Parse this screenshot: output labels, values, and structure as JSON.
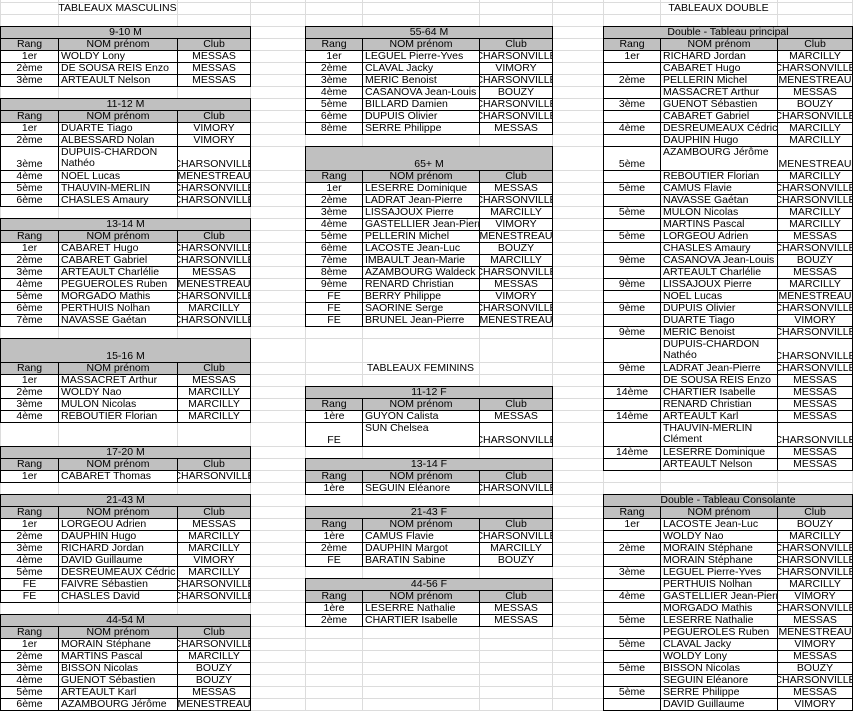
{
  "headers": {
    "rang": "Rang",
    "nom": "NOM prénom",
    "club": "Club"
  },
  "masculins": {
    "heading": "TABLEAUX MASCULINS",
    "tables": [
      {
        "title": "9-10 M",
        "rows": [
          [
            "1er",
            "WOLDY Lony",
            "MESSAS"
          ],
          [
            "2ème",
            "DE SOUSA REIS Enzo",
            "MESSAS"
          ],
          [
            "3ème",
            "ARTEAULT Nelson",
            "MESSAS"
          ]
        ]
      },
      {
        "title": "11-12 M",
        "rows": [
          [
            "1er",
            "DUARTE Tiago",
            "VIMORY"
          ],
          [
            "2ème",
            "ALBESSARD Nolan",
            "VIMORY"
          ],
          [
            "3ème",
            "DUPUIS-CHARDON Nathéo",
            "CHARSONVILLE"
          ],
          [
            "4ème",
            "NOEL Lucas",
            "MENESTREAU"
          ],
          [
            "5ème",
            "THAUVIN-MERLIN",
            "CHARSONVILLE"
          ],
          [
            "6ème",
            "CHASLES Amaury",
            "CHARSONVILLE"
          ]
        ]
      },
      {
        "title": "13-14 M",
        "rows": [
          [
            "1er",
            "CABARET Hugo",
            "CHARSONVILLE"
          ],
          [
            "2ème",
            "CABARET Gabriel",
            "CHARSONVILLE"
          ],
          [
            "3ème",
            "ARTEAULT Charlélie",
            "MESSAS"
          ],
          [
            "4ème",
            "PEGUEROLES Ruben",
            "MENESTREAU"
          ],
          [
            "5ème",
            "MORGADO Mathis",
            "CHARSONVILLE"
          ],
          [
            "6ème",
            "PERTHUIS Nolhan",
            "MARCILLY"
          ],
          [
            "7ème",
            "NAVASSE Gaétan",
            "CHARSONVILLE"
          ]
        ]
      },
      {
        "title": "15-16 M",
        "rows": [
          [
            "1er",
            "MASSACRET Arthur",
            "MESSAS"
          ],
          [
            "2ème",
            "WOLDY Nao",
            "MARCILLY"
          ],
          [
            "3ème",
            "MULON Nicolas",
            "MARCILLY"
          ],
          [
            "4ème",
            "REBOUTIER Florian",
            "MARCILLY"
          ]
        ]
      },
      {
        "title": "17-20 M",
        "rows": [
          [
            "1er",
            "CABARET Thomas",
            "CHARSONVILLE"
          ]
        ]
      },
      {
        "title": "21-43 M",
        "rows": [
          [
            "1er",
            "LORGEOU Adrien",
            "MESSAS"
          ],
          [
            "2ème",
            "DAUPHIN Hugo",
            "MARCILLY"
          ],
          [
            "3ème",
            "RICHARD Jordan",
            "MARCILLY"
          ],
          [
            "4ème",
            "DAVID Guillaume",
            "VIMORY"
          ],
          [
            "5ème",
            "DESREUMEAUX Cédric",
            "MARCILLY"
          ],
          [
            "FE",
            "FAIVRE Sébastien",
            "CHARSONVILLE"
          ],
          [
            "FE",
            "CHASLES David",
            "CHARSONVILLE"
          ]
        ]
      },
      {
        "title": "44-54 M",
        "rows": [
          [
            "1er",
            "MORAIN Stéphane",
            "CHARSONVILLE"
          ],
          [
            "2ème",
            "MARTINS Pascal",
            "MARCILLY"
          ],
          [
            "3ème",
            "BISSON Nicolas",
            "BOUZY"
          ],
          [
            "4ème",
            "GUENOT Sébastien",
            "BOUZY"
          ],
          [
            "5ème",
            "ARTEAULT Karl",
            "MESSAS"
          ],
          [
            "6ème",
            "AZAMBOURG Jérôme",
            "MENESTREAU"
          ]
        ]
      },
      {
        "title": "55-64 M",
        "rows": [
          [
            "1er",
            "LEGUEL Pierre-Yves",
            "CHARSONVILLE"
          ],
          [
            "2ème",
            "CLAVAL Jacky",
            "VIMORY"
          ],
          [
            "3ème",
            "MERIC Benoist",
            "CHARSONVILLE"
          ],
          [
            "4ème",
            "CASANOVA Jean-Louis",
            "BOUZY"
          ],
          [
            "5ème",
            "BILLARD Damien",
            "CHARSONVILLE"
          ],
          [
            "6ème",
            "DUPUIS Olivier",
            "CHARSONVILLE"
          ],
          [
            "8ème",
            "SERRE Philippe",
            "MESSAS"
          ]
        ]
      },
      {
        "title": "65+ M",
        "rows": [
          [
            "1er",
            "LESERRE Dominique",
            "MESSAS"
          ],
          [
            "2ème",
            "LADRAT Jean-Pierre",
            "CHARSONVILLE"
          ],
          [
            "3ème",
            "LISSAJOUX Pierre",
            "MARCILLY"
          ],
          [
            "4ème",
            "GASTELLIER Jean-Pierre",
            "VIMORY"
          ],
          [
            "5ème",
            "PELLERIN Michel",
            "MENESTREAU"
          ],
          [
            "6ème",
            "LACOSTE Jean-Luc",
            "BOUZY"
          ],
          [
            "7ème",
            "IMBAULT Jean-Marie",
            "MARCILLY"
          ],
          [
            "8ème",
            "AZAMBOURG Waldeck",
            "CHARSONVILLE"
          ],
          [
            "9ème",
            "RENARD Christian",
            "MESSAS"
          ],
          [
            "FE",
            "BERRY Philippe",
            "VIMORY"
          ],
          [
            "FE",
            "SAORINE Serge",
            "CHARSONVILLE"
          ],
          [
            "FE",
            "BRUNEL Jean-Pierre",
            "MENESTREAU"
          ]
        ]
      }
    ]
  },
  "feminins": {
    "heading": "TABLEAUX FEMININS",
    "tables": [
      {
        "title": "11-12 F",
        "rows": [
          [
            "1ère",
            "GUYON Calista",
            "MESSAS"
          ],
          [
            "FE",
            "SUN Chelsea",
            "CHARSONVILLE"
          ]
        ]
      },
      {
        "title": "13-14 F",
        "rows": [
          [
            "1ère",
            "SEGUIN Eléanore",
            "CHARSONVILLE"
          ]
        ]
      },
      {
        "title": "21-43 F",
        "rows": [
          [
            "1ère",
            "CAMUS Flavie",
            "CHARSONVILLE"
          ],
          [
            "2ème",
            "DAUPHIN Margot",
            "MARCILLY"
          ],
          [
            "FE",
            "BARATIN Sabine",
            "BOUZY"
          ]
        ]
      },
      {
        "title": "44-56 F",
        "rows": [
          [
            "1ère",
            "LESERRE Nathalie",
            "MESSAS"
          ],
          [
            "2ème",
            "CHARTIER Isabelle",
            "MESSAS"
          ]
        ]
      }
    ]
  },
  "doubles": {
    "heading": "TABLEAUX DOUBLE",
    "tables": [
      {
        "title": "Double - Tableau principal",
        "rows": [
          [
            "1er",
            "RICHARD Jordan",
            "MARCILLY"
          ],
          [
            "",
            "CABARET Hugo",
            "CHARSONVILLE"
          ],
          [
            "2ème",
            "PELLERIN Michel",
            "MENESTREAU"
          ],
          [
            "",
            "MASSACRET Arthur",
            "MESSAS"
          ],
          [
            "3ème",
            "GUENOT Sébastien",
            "BOUZY"
          ],
          [
            "",
            "CABARET Gabriel",
            "CHARSONVILLE"
          ],
          [
            "4ème",
            "DESREUMEAUX Cédric",
            "MARCILLY"
          ],
          [
            "",
            "DAUPHIN Hugo",
            "MARCILLY"
          ],
          [
            "5ème",
            "AZAMBOURG Jérôme",
            "MENESTREAU"
          ],
          [
            "",
            "REBOUTIER Florian",
            "MARCILLY"
          ],
          [
            "5ème",
            "CAMUS Flavie",
            "CHARSONVILLE"
          ],
          [
            "",
            "NAVASSE Gaétan",
            "CHARSONVILLE"
          ],
          [
            "5ème",
            "MULON Nicolas",
            "MARCILLY"
          ],
          [
            "",
            "MARTINS Pascal",
            "MARCILLY"
          ],
          [
            "5ème",
            "LORGEOU Adrien",
            "MESSAS"
          ],
          [
            "",
            "CHASLES Amaury",
            "CHARSONVILLE"
          ],
          [
            "9ème",
            "CASANOVA Jean-Louis",
            "BOUZY"
          ],
          [
            "",
            "ARTEAULT Charlélie",
            "MESSAS"
          ],
          [
            "9ème",
            "LISSAJOUX Pierre",
            "MARCILLY"
          ],
          [
            "",
            "NOEL Lucas",
            "MENESTREAU"
          ],
          [
            "9ème",
            "DUPUIS Olivier",
            "CHARSONVILLE"
          ],
          [
            "",
            "DUARTE Tiago",
            "VIMORY"
          ],
          [
            "9ème",
            "MERIC Benoist",
            "CHARSONVILLE"
          ],
          [
            "",
            "DUPUIS-CHARDON Nathéo",
            "CHARSONVILLE"
          ],
          [
            "9ème",
            "LADRAT Jean-Pierre",
            "CHARSONVILLE"
          ],
          [
            "",
            "DE SOUSA REIS Enzo",
            "MESSAS"
          ],
          [
            "14ème",
            "CHARTIER Isabelle",
            "MESSAS"
          ],
          [
            "",
            "RENARD Christian",
            "MESSAS"
          ],
          [
            "14ème",
            "ARTEAULT Karl",
            "MESSAS"
          ],
          [
            "",
            "THAUVIN-MERLIN Clément",
            "CHARSONVILLE"
          ],
          [
            "14ème",
            "LESERRE Dominique",
            "MESSAS"
          ],
          [
            "",
            "ARTEAULT Nelson",
            "MESSAS"
          ]
        ]
      },
      {
        "title": "Double - Tableau Consolante",
        "rows": [
          [
            "1er",
            "LACOSTE Jean-Luc",
            "BOUZY"
          ],
          [
            "",
            "WOLDY Nao",
            "MARCILLY"
          ],
          [
            "2ème",
            "MORAIN Stéphane",
            "CHARSONVILLE"
          ],
          [
            "",
            "MORAIN Stéphane",
            "CHARSONVILLE"
          ],
          [
            "3ème",
            "LEGUEL Pierre-Yves",
            "CHARSONVILLE"
          ],
          [
            "",
            "PERTHUIS Nolhan",
            "MARCILLY"
          ],
          [
            "4ème",
            "GASTELLIER Jean-Pierre",
            "VIMORY"
          ],
          [
            "",
            "MORGADO Mathis",
            "CHARSONVILLE"
          ],
          [
            "5ème",
            "LESERRE Nathalie",
            "MESSAS"
          ],
          [
            "",
            "PEGUEROLES Ruben",
            "MENESTREAU"
          ],
          [
            "5ème",
            "CLAVAL Jacky",
            "VIMORY"
          ],
          [
            "",
            "WOLDY Lony",
            "MESSAS"
          ],
          [
            "5ème",
            "BISSON Nicolas",
            "BOUZY"
          ],
          [
            "",
            "SEGUIN Eléanore",
            "CHARSONVILLE"
          ],
          [
            "5ème",
            "SERRE Philippe",
            "MESSAS"
          ],
          [
            "",
            "DAVID Guillaume",
            "VIMORY"
          ]
        ]
      }
    ]
  },
  "colors": {
    "header_fill": "#c0c0c0",
    "gridline": "#dcdcdc"
  }
}
